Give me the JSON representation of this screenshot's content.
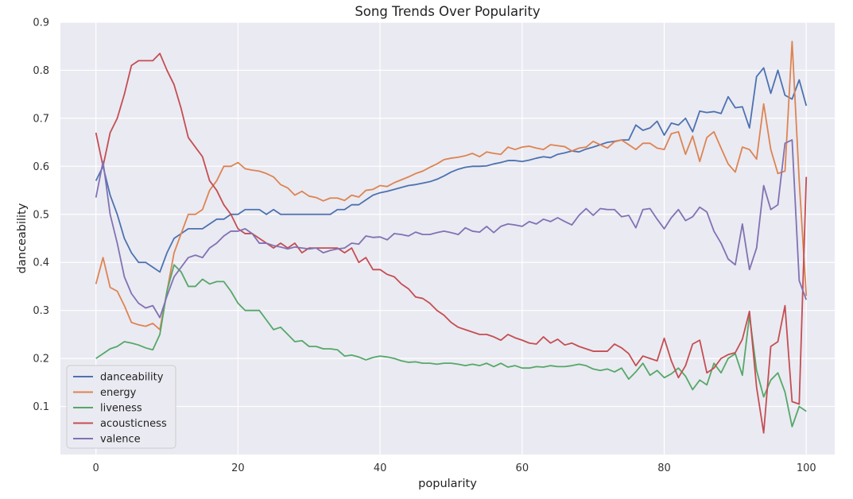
{
  "chart_data": {
    "type": "line",
    "title": "Song Trends Over Popularity",
    "xlabel": "popularity",
    "ylabel": "danceability",
    "xlim": [
      -5,
      104
    ],
    "ylim": [
      0.0,
      0.9
    ],
    "xticks": [
      0,
      20,
      40,
      60,
      80,
      100
    ],
    "xtick_labels": [
      "0",
      "20",
      "40",
      "60",
      "80",
      "100"
    ],
    "yticks": [
      0.1,
      0.2,
      0.3,
      0.4,
      0.5,
      0.6,
      0.7,
      0.8,
      0.9
    ],
    "ytick_labels": [
      "0.1",
      "0.2",
      "0.3",
      "0.4",
      "0.5",
      "0.6",
      "0.7",
      "0.8",
      "0.9"
    ],
    "grid": true,
    "legend_position": "lower-left",
    "background": "#eaeaf2",
    "x": [
      0,
      1,
      2,
      3,
      4,
      5,
      6,
      7,
      8,
      9,
      10,
      11,
      12,
      13,
      14,
      15,
      16,
      17,
      18,
      19,
      20,
      21,
      22,
      23,
      24,
      25,
      26,
      27,
      28,
      29,
      30,
      31,
      32,
      33,
      34,
      35,
      36,
      37,
      38,
      39,
      40,
      41,
      42,
      43,
      44,
      45,
      46,
      47,
      48,
      49,
      50,
      51,
      52,
      53,
      54,
      55,
      56,
      57,
      58,
      59,
      60,
      61,
      62,
      63,
      64,
      65,
      66,
      67,
      68,
      69,
      70,
      71,
      72,
      73,
      74,
      75,
      76,
      77,
      78,
      79,
      80,
      81,
      82,
      83,
      84,
      85,
      86,
      87,
      88,
      89,
      90,
      91,
      92,
      93,
      94,
      95,
      96,
      97,
      98,
      99,
      100
    ],
    "series": [
      {
        "name": "danceability",
        "color": "#4c72b0",
        "values": [
          0.57,
          0.6,
          0.54,
          0.5,
          0.45,
          0.42,
          0.4,
          0.4,
          0.39,
          0.38,
          0.42,
          0.45,
          0.46,
          0.47,
          0.47,
          0.47,
          0.48,
          0.49,
          0.49,
          0.5,
          0.5,
          0.51,
          0.51,
          0.51,
          0.5,
          0.51,
          0.5,
          0.5,
          0.5,
          0.5,
          0.5,
          0.5,
          0.5,
          0.5,
          0.51,
          0.51,
          0.52,
          0.52,
          0.53,
          0.54,
          0.545,
          0.548,
          0.552,
          0.556,
          0.56,
          0.562,
          0.565,
          0.568,
          0.573,
          0.58,
          0.588,
          0.594,
          0.598,
          0.6,
          0.6,
          0.601,
          0.605,
          0.608,
          0.612,
          0.612,
          0.61,
          0.613,
          0.617,
          0.62,
          0.618,
          0.625,
          0.628,
          0.632,
          0.63,
          0.636,
          0.64,
          0.645,
          0.65,
          0.652,
          0.655,
          0.655,
          0.686,
          0.675,
          0.68,
          0.694,
          0.665,
          0.69,
          0.686,
          0.7,
          0.672,
          0.715,
          0.712,
          0.714,
          0.71,
          0.745,
          0.722,
          0.724,
          0.68,
          0.787,
          0.805,
          0.752,
          0.8,
          0.748,
          0.74,
          0.78,
          0.726
        ]
      },
      {
        "name": "energy",
        "color": "#dd8452",
        "values": [
          0.355,
          0.41,
          0.348,
          0.34,
          0.31,
          0.275,
          0.27,
          0.267,
          0.273,
          0.26,
          0.34,
          0.42,
          0.46,
          0.5,
          0.5,
          0.51,
          0.55,
          0.57,
          0.6,
          0.6,
          0.608,
          0.595,
          0.592,
          0.59,
          0.585,
          0.578,
          0.562,
          0.555,
          0.54,
          0.548,
          0.538,
          0.535,
          0.528,
          0.534,
          0.534,
          0.529,
          0.54,
          0.536,
          0.55,
          0.552,
          0.56,
          0.558,
          0.566,
          0.572,
          0.578,
          0.585,
          0.59,
          0.598,
          0.605,
          0.614,
          0.617,
          0.619,
          0.622,
          0.627,
          0.62,
          0.63,
          0.627,
          0.625,
          0.64,
          0.635,
          0.64,
          0.642,
          0.638,
          0.635,
          0.645,
          0.643,
          0.641,
          0.632,
          0.638,
          0.64,
          0.652,
          0.645,
          0.638,
          0.651,
          0.655,
          0.645,
          0.635,
          0.648,
          0.648,
          0.638,
          0.635,
          0.668,
          0.672,
          0.625,
          0.663,
          0.61,
          0.66,
          0.672,
          0.638,
          0.605,
          0.588,
          0.64,
          0.635,
          0.615,
          0.73,
          0.635,
          0.585,
          0.59,
          0.86,
          0.57,
          0.33
        ]
      },
      {
        "name": "liveness",
        "color": "#55a868",
        "values": [
          0.2,
          0.21,
          0.22,
          0.225,
          0.235,
          0.232,
          0.228,
          0.222,
          0.218,
          0.25,
          0.34,
          0.395,
          0.38,
          0.35,
          0.35,
          0.365,
          0.355,
          0.36,
          0.36,
          0.34,
          0.315,
          0.3,
          0.3,
          0.3,
          0.28,
          0.26,
          0.265,
          0.25,
          0.235,
          0.237,
          0.225,
          0.225,
          0.22,
          0.22,
          0.218,
          0.205,
          0.207,
          0.203,
          0.197,
          0.202,
          0.205,
          0.203,
          0.2,
          0.195,
          0.192,
          0.193,
          0.19,
          0.19,
          0.188,
          0.19,
          0.19,
          0.188,
          0.185,
          0.188,
          0.185,
          0.19,
          0.183,
          0.19,
          0.182,
          0.185,
          0.18,
          0.18,
          0.183,
          0.182,
          0.185,
          0.183,
          0.183,
          0.185,
          0.188,
          0.185,
          0.178,
          0.175,
          0.178,
          0.172,
          0.18,
          0.157,
          0.172,
          0.19,
          0.165,
          0.175,
          0.16,
          0.168,
          0.18,
          0.163,
          0.135,
          0.155,
          0.145,
          0.19,
          0.17,
          0.2,
          0.21,
          0.165,
          0.29,
          0.175,
          0.12,
          0.155,
          0.17,
          0.13,
          0.058,
          0.1,
          0.09
        ]
      },
      {
        "name": "acousticness",
        "color": "#c44e52",
        "values": [
          0.67,
          0.6,
          0.67,
          0.7,
          0.75,
          0.81,
          0.82,
          0.82,
          0.82,
          0.835,
          0.8,
          0.77,
          0.72,
          0.66,
          0.64,
          0.62,
          0.57,
          0.55,
          0.52,
          0.5,
          0.47,
          0.46,
          0.46,
          0.45,
          0.44,
          0.43,
          0.44,
          0.43,
          0.44,
          0.42,
          0.43,
          0.43,
          0.43,
          0.43,
          0.43,
          0.42,
          0.43,
          0.4,
          0.41,
          0.385,
          0.385,
          0.375,
          0.37,
          0.355,
          0.345,
          0.328,
          0.325,
          0.315,
          0.3,
          0.29,
          0.275,
          0.265,
          0.26,
          0.255,
          0.25,
          0.25,
          0.245,
          0.238,
          0.25,
          0.243,
          0.238,
          0.232,
          0.23,
          0.245,
          0.232,
          0.24,
          0.228,
          0.232,
          0.225,
          0.22,
          0.215,
          0.215,
          0.215,
          0.23,
          0.222,
          0.21,
          0.185,
          0.205,
          0.2,
          0.195,
          0.242,
          0.195,
          0.16,
          0.185,
          0.23,
          0.238,
          0.17,
          0.18,
          0.2,
          0.208,
          0.212,
          0.24,
          0.298,
          0.14,
          0.045,
          0.225,
          0.235,
          0.31,
          0.11,
          0.105,
          0.578
        ]
      },
      {
        "name": "valence",
        "color": "#8172b3",
        "values": [
          0.535,
          0.61,
          0.5,
          0.44,
          0.37,
          0.335,
          0.315,
          0.305,
          0.31,
          0.285,
          0.33,
          0.37,
          0.39,
          0.41,
          0.415,
          0.41,
          0.43,
          0.44,
          0.455,
          0.465,
          0.465,
          0.47,
          0.46,
          0.44,
          0.44,
          0.435,
          0.432,
          0.428,
          0.432,
          0.43,
          0.428,
          0.43,
          0.42,
          0.425,
          0.428,
          0.43,
          0.44,
          0.438,
          0.455,
          0.452,
          0.453,
          0.447,
          0.46,
          0.458,
          0.455,
          0.463,
          0.458,
          0.458,
          0.462,
          0.465,
          0.462,
          0.458,
          0.472,
          0.465,
          0.463,
          0.475,
          0.462,
          0.475,
          0.48,
          0.478,
          0.475,
          0.485,
          0.48,
          0.49,
          0.485,
          0.493,
          0.485,
          0.478,
          0.498,
          0.512,
          0.498,
          0.512,
          0.51,
          0.51,
          0.495,
          0.498,
          0.472,
          0.51,
          0.512,
          0.49,
          0.47,
          0.493,
          0.51,
          0.487,
          0.495,
          0.515,
          0.505,
          0.465,
          0.44,
          0.407,
          0.395,
          0.48,
          0.385,
          0.43,
          0.56,
          0.51,
          0.52,
          0.648,
          0.655,
          0.362,
          0.322
        ]
      }
    ]
  }
}
